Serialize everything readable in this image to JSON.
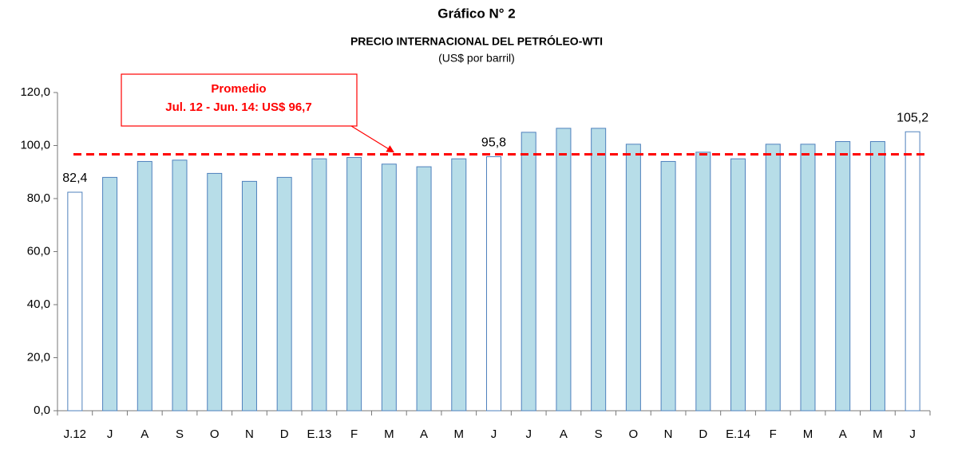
{
  "chart_data": {
    "type": "bar",
    "title": "Gráfico N° 2",
    "subtitle": "PRECIO INTERNACIONAL DEL PETRÓLEO-WTI",
    "unit_label": "(US$ por barril)",
    "categories": [
      "J.12",
      "J",
      "A",
      "S",
      "O",
      "N",
      "D",
      "E.13",
      "F",
      "M",
      "A",
      "M",
      "J",
      "J",
      "A",
      "S",
      "O",
      "N",
      "D",
      "E.14",
      "F",
      "M",
      "A",
      "M",
      "J"
    ],
    "values": [
      82.4,
      88,
      94,
      94.5,
      89.5,
      86.5,
      88,
      95,
      95.5,
      93,
      92,
      95,
      95.8,
      105,
      106.5,
      106.5,
      100.5,
      94,
      97.5,
      95,
      100.5,
      100.5,
      101.5,
      101.5,
      105.2
    ],
    "value_labels": [
      "82,4",
      null,
      null,
      null,
      null,
      null,
      null,
      null,
      null,
      null,
      null,
      null,
      "95,8",
      null,
      null,
      null,
      null,
      null,
      null,
      null,
      null,
      null,
      null,
      null,
      "105,2"
    ],
    "colors": [
      "#ffffff",
      "#b7dde8",
      "#b7dde8",
      "#b7dde8",
      "#b7dde8",
      "#b7dde8",
      "#b7dde8",
      "#b7dde8",
      "#b7dde8",
      "#b7dde8",
      "#b7dde8",
      "#b7dde8",
      "#ffffff",
      "#b7dde8",
      "#b7dde8",
      "#b7dde8",
      "#b7dde8",
      "#b7dde8",
      "#b7dde8",
      "#b7dde8",
      "#b7dde8",
      "#b7dde8",
      "#b7dde8",
      "#b7dde8",
      "#ffffff"
    ],
    "edge_color": "#4f81bd",
    "ylim": [
      0,
      120
    ],
    "yticks": [
      {
        "value": 0,
        "label": "0,0"
      },
      {
        "value": 20,
        "label": "20,0"
      },
      {
        "value": 40,
        "label": "40,0"
      },
      {
        "value": 60,
        "label": "60,0"
      },
      {
        "value": 80,
        "label": "80,0"
      },
      {
        "value": 100,
        "label": "100,0"
      },
      {
        "value": 120,
        "label": "120,0"
      }
    ],
    "average": {
      "value": 96.7,
      "color": "#ff0000",
      "label_lines": [
        "Promedio",
        "Jul. 12 - Jun. 14: US$ 96,7"
      ]
    },
    "grid": false
  }
}
